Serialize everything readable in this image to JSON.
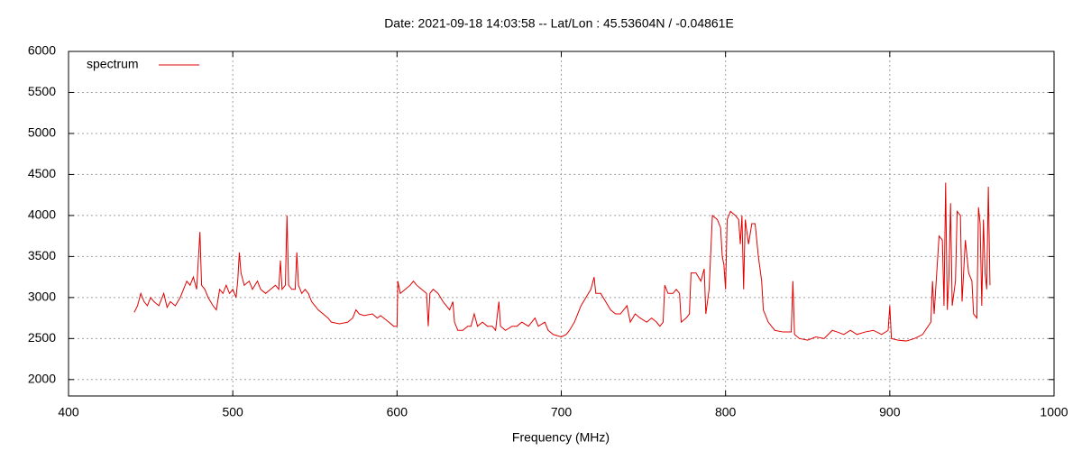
{
  "chart_data": {
    "type": "line",
    "title": "Date: 2021-09-18 14:03:58  --  Lat/Lon : 45.53604N / -0.04861E",
    "x_label": "Frequency (MHz)",
    "xlim": [
      400,
      1000
    ],
    "xticks": [
      400,
      500,
      600,
      700,
      800,
      900,
      1000
    ],
    "ylim": [
      1800,
      6000
    ],
    "yticks": [
      2000,
      2500,
      3000,
      3500,
      4000,
      4500,
      5000,
      5500,
      6000
    ],
    "grid": true,
    "legend": "top-left",
    "x": [
      440,
      442,
      444,
      446,
      448,
      450,
      452,
      455,
      458,
      460,
      462,
      465,
      468,
      470,
      472,
      474,
      476,
      478,
      480,
      481,
      483,
      485,
      488,
      490,
      492,
      494,
      496,
      498,
      500,
      502,
      503,
      504,
      505,
      507,
      510,
      512,
      515,
      517,
      520,
      523,
      526,
      528,
      529,
      530,
      532,
      533,
      534,
      536,
      538,
      539,
      540,
      542,
      544,
      546,
      548,
      550,
      552,
      555,
      558,
      560,
      565,
      570,
      573,
      575,
      577,
      580,
      585,
      588,
      590,
      595,
      598,
      600,
      600.5,
      602,
      605,
      608,
      610,
      612,
      615,
      618,
      619,
      620,
      622,
      625,
      628,
      630,
      632,
      634,
      635,
      637,
      640,
      643,
      645,
      647,
      649,
      652,
      655,
      658,
      660,
      662,
      663,
      666,
      670,
      673,
      676,
      680,
      684,
      686,
      690,
      692,
      695,
      700,
      703,
      705,
      708,
      710,
      712,
      715,
      718,
      720,
      721,
      724,
      727,
      730,
      733,
      736,
      740,
      742,
      745,
      748,
      752,
      755,
      758,
      760,
      762,
      763,
      765,
      768,
      770,
      772,
      773,
      776,
      778,
      779,
      782,
      785,
      787,
      788,
      790,
      792,
      795,
      797,
      798,
      799,
      800,
      801,
      803,
      806,
      808,
      809,
      810,
      811,
      812,
      814,
      816,
      818,
      820,
      822,
      823,
      826,
      830,
      835,
      840,
      841,
      842,
      845,
      850,
      855,
      860,
      865,
      868,
      872,
      876,
      880,
      885,
      890,
      895,
      899,
      900,
      901,
      905,
      910,
      915,
      920,
      925,
      926,
      927,
      930,
      932,
      933,
      934,
      935,
      936,
      937,
      938,
      940,
      941,
      943,
      944,
      946,
      948,
      950,
      951,
      953,
      954,
      955,
      956,
      957,
      958,
      959,
      960,
      961
    ],
    "series": [
      {
        "name": "spectrum",
        "color": "#e00000",
        "values": [
          2820,
          2900,
          3050,
          2950,
          2900,
          3000,
          2950,
          2900,
          3050,
          2880,
          2950,
          2900,
          3000,
          3100,
          3200,
          3150,
          3250,
          3100,
          3800,
          3150,
          3100,
          3000,
          2900,
          2850,
          3100,
          3050,
          3150,
          3050,
          3100,
          3000,
          3200,
          3550,
          3300,
          3150,
          3200,
          3100,
          3200,
          3100,
          3050,
          3100,
          3150,
          3100,
          3450,
          3100,
          3150,
          4000,
          3150,
          3100,
          3100,
          3550,
          3150,
          3050,
          3100,
          3050,
          2950,
          2900,
          2850,
          2800,
          2750,
          2700,
          2680,
          2700,
          2750,
          2850,
          2800,
          2780,
          2800,
          2750,
          2780,
          2700,
          2650,
          2650,
          3200,
          3050,
          3100,
          3150,
          3200,
          3150,
          3100,
          3050,
          2650,
          3050,
          3100,
          3050,
          2950,
          2900,
          2850,
          2950,
          2700,
          2600,
          2600,
          2650,
          2650,
          2800,
          2650,
          2700,
          2650,
          2650,
          2600,
          2950,
          2650,
          2600,
          2650,
          2650,
          2700,
          2650,
          2750,
          2650,
          2700,
          2600,
          2550,
          2520,
          2550,
          2600,
          2700,
          2800,
          2900,
          3000,
          3100,
          3250,
          3050,
          3050,
          2950,
          2850,
          2800,
          2800,
          2900,
          2700,
          2800,
          2750,
          2700,
          2750,
          2700,
          2650,
          2700,
          3150,
          3050,
          3050,
          3100,
          3050,
          2700,
          2750,
          2800,
          3300,
          3300,
          3200,
          3350,
          2800,
          3100,
          4000,
          3950,
          3850,
          3500,
          3400,
          3100,
          3950,
          4050,
          4000,
          3950,
          3650,
          4000,
          3100,
          3950,
          3650,
          3900,
          3900,
          3500,
          3200,
          2850,
          2700,
          2600,
          2580,
          2580,
          3200,
          2550,
          2500,
          2480,
          2520,
          2500,
          2600,
          2580,
          2550,
          2600,
          2550,
          2580,
          2600,
          2550,
          2600,
          2900,
          2500,
          2480,
          2470,
          2500,
          2550,
          2700,
          3200,
          2800,
          3750,
          3700,
          2900,
          4400,
          2850,
          3250,
          4150,
          2900,
          3200,
          4050,
          4000,
          2950,
          3700,
          3300,
          3200,
          2800,
          2750,
          4100,
          3900,
          2900,
          3950,
          3300,
          3100,
          4350,
          3150
        ]
      }
    ]
  }
}
